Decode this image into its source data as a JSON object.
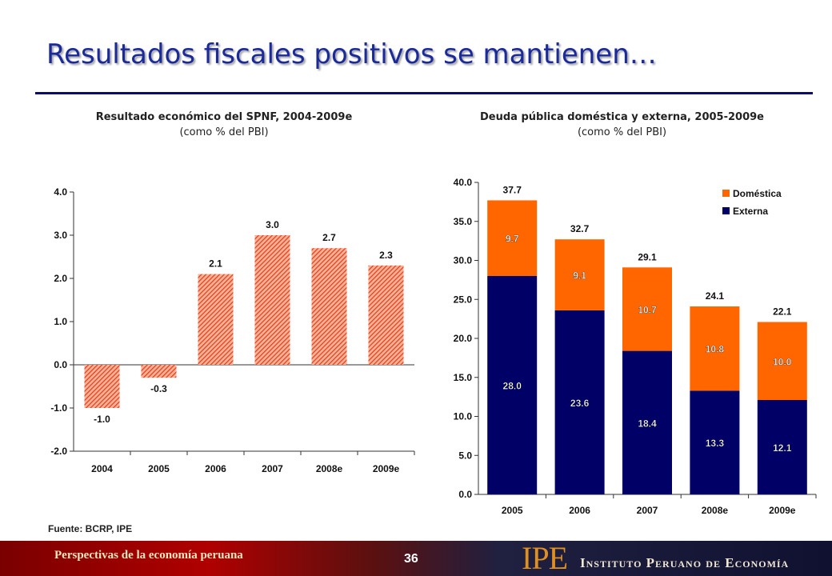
{
  "slide": {
    "title": "Resultados fiscales positivos se mantienen…",
    "source": "Fuente: BCRP, IPE",
    "footer_left": "Perspectivas de la economía peruana",
    "page_number": "36",
    "logo": "IPE",
    "logo_text": "Instituto Peruano de Economía"
  },
  "colors": {
    "title": "#1a2a9a",
    "rule": "#0b0b6e",
    "bar_hatch": "#e8401a",
    "domestic": "#ff6600",
    "external": "#000066"
  },
  "chart_data": [
    {
      "type": "bar",
      "title": "Resultado económico del SPNF, 2004-2009e",
      "subtitle": "(como % del PBI)",
      "categories": [
        "2004",
        "2005",
        "2006",
        "2007",
        "2008e",
        "2009e"
      ],
      "values": [
        -1.0,
        -0.3,
        2.1,
        3.0,
        2.7,
        2.3
      ],
      "value_labels": [
        "-1.0",
        "-0.3",
        "2.1",
        "3.0",
        "2.7",
        "2.3"
      ],
      "ylim": [
        -2.0,
        4.0
      ],
      "yticks": [
        "4.0",
        "3.0",
        "2.0",
        "1.0",
        "0.0",
        "-1.0",
        "-2.0"
      ],
      "pattern": "hatched",
      "grid": false
    },
    {
      "type": "bar",
      "stacked": true,
      "title": "Deuda pública doméstica y externa, 2005-2009e",
      "subtitle": "(como % del PBI)",
      "categories": [
        "2005",
        "2006",
        "2007",
        "2008e",
        "2009e"
      ],
      "series": [
        {
          "name": "Externa",
          "values": [
            28.0,
            23.6,
            18.4,
            13.3,
            12.1
          ],
          "labels": [
            "28.0",
            "23.6",
            "18.4",
            "13.3",
            "12.1"
          ]
        },
        {
          "name": "Doméstica",
          "values": [
            9.7,
            9.1,
            10.7,
            10.8,
            10.0
          ],
          "labels": [
            "9.7",
            "9.1",
            "10.7",
            "10.8",
            "10.0"
          ]
        }
      ],
      "totals": [
        "37.7",
        "32.7",
        "29.1",
        "24.1",
        "22.1"
      ],
      "ylim": [
        0,
        40
      ],
      "yticks": [
        "40.0",
        "35.0",
        "30.0",
        "25.0",
        "20.0",
        "15.0",
        "10.0",
        "5.0",
        "0.0"
      ],
      "legend": {
        "position": "top-right",
        "items": [
          "Doméstica",
          "Externa"
        ]
      },
      "grid": false
    }
  ]
}
